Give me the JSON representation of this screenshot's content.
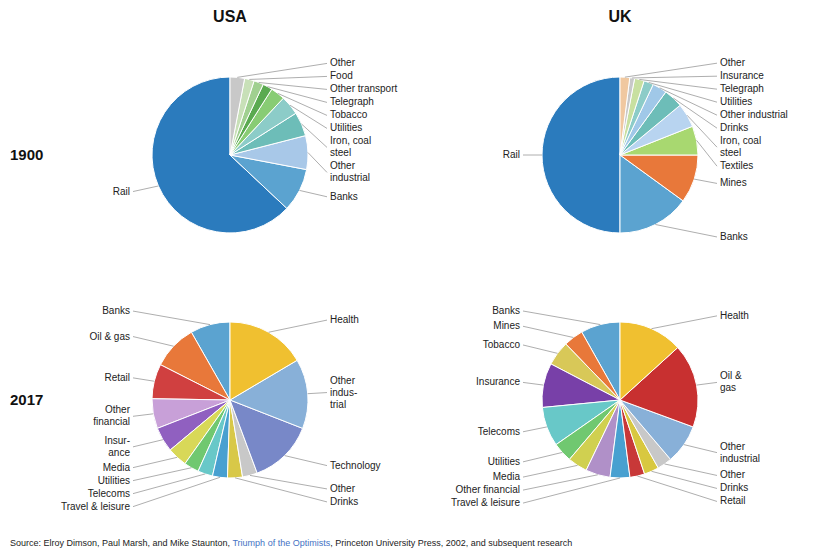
{
  "chart_data": [
    {
      "type": "pie",
      "title": "USA",
      "subtitle": "1900",
      "categories": [
        "Rail",
        "Banks",
        "Other\nindustrial",
        "Iron, coal\nsteel",
        "Utilities",
        "Tobacco",
        "Telegraph",
        "Other transport",
        "Food",
        "Other"
      ],
      "values": [
        63,
        9,
        7,
        5,
        4,
        3,
        2,
        2,
        2,
        3
      ],
      "colors": [
        "#2B7BBD",
        "#5BA3D0",
        "#A8C8E8",
        "#6DBDB8",
        "#8CCCC8",
        "#88CC74",
        "#5AAA50",
        "#A0D090",
        "#C8E0B8",
        "#C8C8C8"
      ]
    },
    {
      "type": "pie",
      "title": "UK",
      "categories": [
        "Rail",
        "Banks",
        "Mines",
        "Textiles",
        "Iron, coal\nsteel",
        "Drinks",
        "Other industrial",
        "Utilities",
        "Telegraph",
        "Insurance",
        "Other"
      ],
      "values": [
        50,
        15,
        10,
        6,
        5,
        4,
        3,
        2,
        2,
        1,
        2
      ],
      "colors": [
        "#2B7BBD",
        "#5BA3D0",
        "#E8783A",
        "#A8D870",
        "#B8D4F0",
        "#6DBDB8",
        "#A0C8E8",
        "#8CCCC8",
        "#C8E0A0",
        "#C8C8C8",
        "#F0C8A0"
      ]
    },
    {
      "type": "pie",
      "subtitle": "2017",
      "categories": [
        "Banks",
        "Oil & gas",
        "Retail",
        "Other\nfinancial",
        "Insur-\nance",
        "Media",
        "Utilities",
        "Telecoms",
        "Travel & leisure",
        "Drinks",
        "Other",
        "Technology",
        "Other\nindus-\ntrial",
        "Health"
      ],
      "values": [
        8,
        9,
        7,
        6,
        5,
        4,
        3,
        3,
        3,
        3,
        3,
        13,
        14,
        16
      ],
      "colors": [
        "#5BA3D0",
        "#E8783A",
        "#D04040",
        "#C8A0D8",
        "#9060C0",
        "#D8D858",
        "#70C870",
        "#68C8C8",
        "#48A0D0",
        "#D8C848",
        "#C8C8C8",
        "#7888C8",
        "#88B0D8",
        "#F0C030"
      ]
    },
    {
      "type": "pie",
      "categories": [
        "Banks",
        "Mines",
        "Tobacco",
        "Insurance",
        "Telecoms",
        "Utilities",
        "Media",
        "Other financial",
        "Travel & leisure",
        "Retail",
        "Drinks",
        "Other",
        "Other\nindustrial",
        "Oil &\ngas",
        "Health"
      ],
      "values": [
        8,
        4,
        5,
        9,
        8,
        4,
        4,
        5,
        4,
        3,
        3,
        3,
        8,
        17,
        13
      ],
      "colors": [
        "#5BA3D0",
        "#E8783A",
        "#D8C858",
        "#7840A8",
        "#68C8C8",
        "#70C870",
        "#D0D050",
        "#B090C8",
        "#48A0D0",
        "#C83838",
        "#D8C840",
        "#C8C8C8",
        "#88B0D8",
        "#C83030",
        "#F0C030"
      ],
      "annotations": [
        {
          "text": "Source: Elroy Dimson, Paul Marsh, and Mike Staunton, ",
          "color": "#222222"
        },
        {
          "text": "Triumph of the Optimists",
          "color": "#4472C4"
        },
        {
          "text": ", Princeton University Press, 2002, and subsequent research",
          "color": "#222222"
        }
      ]
    }
  ]
}
